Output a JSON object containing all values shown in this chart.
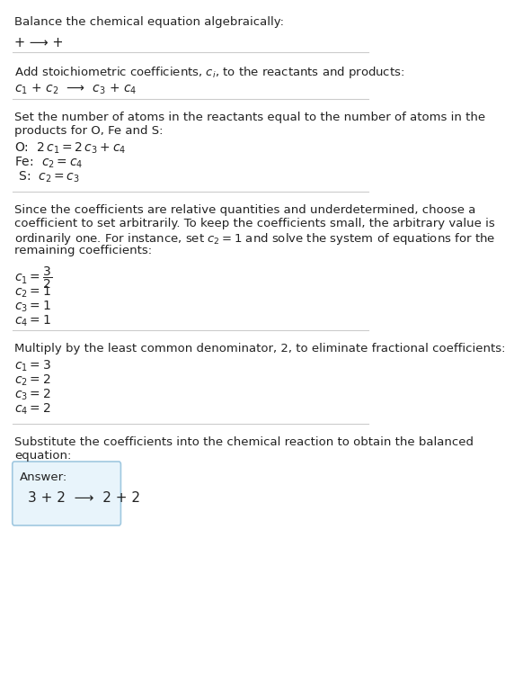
{
  "bg_color": "#ffffff",
  "text_color": "#000000",
  "gray_text": "#555555",
  "line_color": "#cccccc",
  "answer_box_color": "#e8f4fb",
  "answer_box_border": "#a0c8e0",
  "section1_title": "Balance the chemical equation algebraically:",
  "section1_line": "+ ⟶ +",
  "section2_title": "Add stoichiometric coefficients, $c_i$, to the reactants and products:",
  "section2_line": "$c_1$ + $c_2$  ⟶  $c_3$ + $c_4$",
  "section3_title": "Set the number of atoms in the reactants equal to the number of atoms in the\nproducts for O, Fe and S:",
  "section3_lines": [
    "O:  $2\\,c_1 = 2\\,c_3 + c_4$",
    "Fe:  $c_2 = c_4$",
    " S:  $c_2 = c_3$"
  ],
  "section4_title": "Since the coefficients are relative quantities and underdetermined, choose a\ncoefficient to set arbitrarily. To keep the coefficients small, the arbitrary value is\nordinarily one. For instance, set $c_2 = 1$ and solve the system of equations for the\nremaining coefficients:",
  "section4_lines": [
    "$c_1 = \\dfrac{3}{2}$",
    "$c_2 = 1$",
    "$c_3 = 1$",
    "$c_4 = 1$"
  ],
  "section5_title": "Multiply by the least common denominator, 2, to eliminate fractional coefficients:",
  "section5_lines": [
    "$c_1 = 3$",
    "$c_2 = 2$",
    "$c_3 = 2$",
    "$c_4 = 2$"
  ],
  "section6_title": "Substitute the coefficients into the chemical reaction to obtain the balanced\nequation:",
  "answer_label": "Answer:",
  "answer_line": "3 + 2  ⟶  2 + 2"
}
